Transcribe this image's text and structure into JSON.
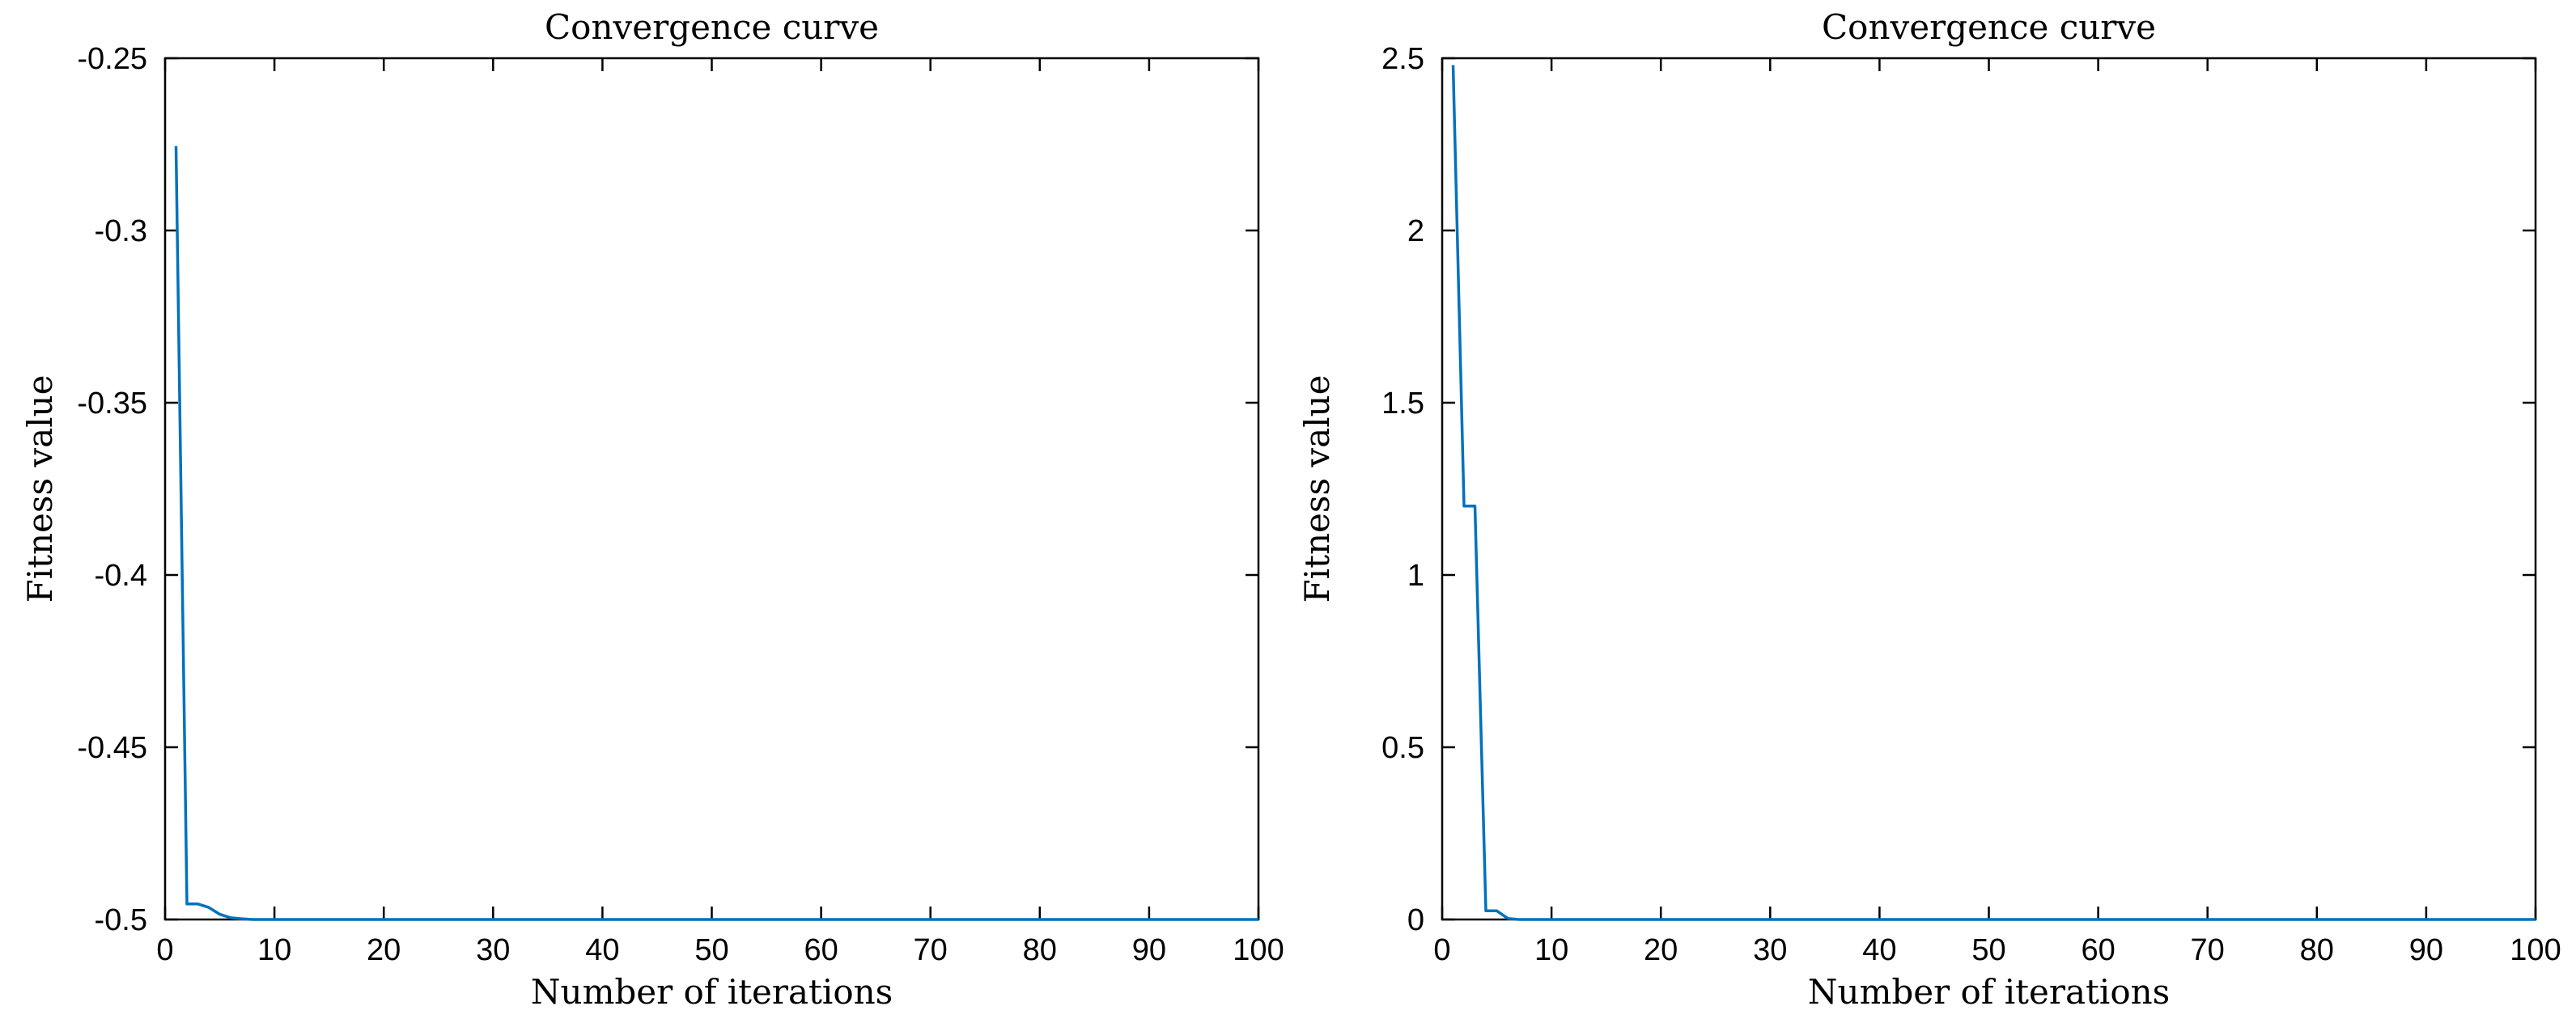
{
  "chart_data": [
    {
      "type": "line",
      "title": "Convergence curve",
      "xlabel": "Number of iterations",
      "ylabel": "Fitness value",
      "xlim": [
        0,
        100
      ],
      "ylim": [
        -0.5,
        -0.25
      ],
      "xticks": [
        0,
        10,
        20,
        30,
        40,
        50,
        60,
        70,
        80,
        90,
        100
      ],
      "xtick_labels": [
        "0",
        "10",
        "20",
        "30",
        "40",
        "50",
        "60",
        "70",
        "80",
        "90",
        "100"
      ],
      "yticks": [
        -0.5,
        -0.45,
        -0.4,
        -0.35,
        -0.3,
        -0.25
      ],
      "ytick_labels": [
        "-0.5",
        "-0.45",
        "-0.4",
        "-0.35",
        "-0.3",
        "-0.25"
      ],
      "grid": false,
      "series": [
        {
          "color": "#0072BD",
          "x": [
            1,
            2,
            3,
            4,
            5,
            6,
            7,
            8,
            100
          ],
          "y": [
            -0.2755,
            -0.4955,
            -0.4955,
            -0.4965,
            -0.4985,
            -0.4995,
            -0.4998,
            -0.5,
            -0.5
          ]
        }
      ]
    },
    {
      "type": "line",
      "title": "Convergence curve",
      "xlabel": "Number of iterations",
      "ylabel": "Fitness value",
      "xlim": [
        0,
        100
      ],
      "ylim": [
        0,
        2.5
      ],
      "xticks": [
        0,
        10,
        20,
        30,
        40,
        50,
        60,
        70,
        80,
        90,
        100
      ],
      "xtick_labels": [
        "0",
        "10",
        "20",
        "30",
        "40",
        "50",
        "60",
        "70",
        "80",
        "90",
        "100"
      ],
      "yticks": [
        0,
        0.5,
        1,
        1.5,
        2,
        2.5
      ],
      "ytick_labels": [
        "0",
        "0.5",
        "1",
        "1.5",
        "2",
        "2.5"
      ],
      "grid": false,
      "series": [
        {
          "color": "#0072BD",
          "x": [
            1,
            2,
            3,
            4,
            5,
            6,
            7,
            100
          ],
          "y": [
            2.48,
            1.2,
            1.2,
            0.025,
            0.025,
            0.003,
            0.0,
            0.0
          ]
        }
      ]
    }
  ]
}
